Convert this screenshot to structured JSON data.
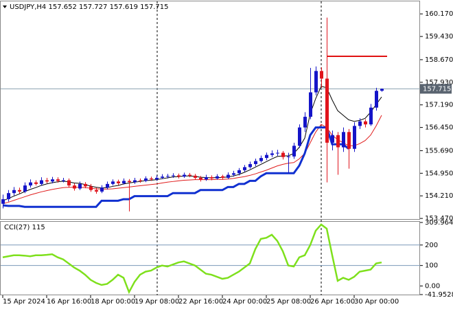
{
  "chart_data": {
    "type": "candlestick",
    "title": "USDJPY,H4",
    "categories": [
      "15 Apr 2024",
      null,
      null,
      null,
      null,
      null,
      null,
      null,
      "16 Apr 16:00",
      null,
      null,
      null,
      null,
      null,
      null,
      null,
      "18 Apr 00:00",
      null,
      null,
      null,
      null,
      null,
      null,
      null,
      "19 Apr 08:00",
      null,
      null,
      null,
      null,
      null,
      null,
      null,
      "22 Apr 16:00",
      null,
      null,
      null,
      null,
      null,
      null,
      null,
      "24 Apr 00:00",
      null,
      null,
      null,
      null,
      null,
      null,
      null,
      "25 Apr 08:00",
      null,
      null,
      null,
      null,
      null,
      null,
      null,
      "26 Apr 16:00",
      null,
      null,
      null,
      null,
      null,
      null,
      null,
      "30 Apr 00:00",
      null,
      null,
      null,
      null,
      null
    ],
    "open": [
      153.95,
      154.1,
      154.3,
      154.4,
      154.35,
      154.55,
      154.65,
      154.6,
      154.72,
      154.68,
      154.75,
      154.7,
      154.72,
      154.55,
      154.45,
      154.6,
      154.52,
      154.4,
      154.35,
      154.48,
      154.6,
      154.68,
      154.62,
      154.7,
      154.66,
      154.72,
      154.7,
      154.78,
      154.75,
      154.8,
      154.84,
      154.86,
      154.88,
      154.84,
      154.9,
      154.87,
      154.8,
      154.75,
      154.82,
      154.78,
      154.85,
      154.8,
      154.9,
      154.95,
      155.05,
      155.15,
      155.25,
      155.35,
      155.45,
      155.55,
      155.6,
      155.62,
      155.48,
      155.5,
      155.85,
      156.45,
      156.8,
      157.6,
      158.3,
      158.05,
      155.95,
      156.2,
      155.8,
      156.3,
      155.75,
      156.5,
      156.65,
      156.55,
      157.1,
      157.652
    ],
    "high": [
      154.25,
      154.4,
      154.5,
      154.48,
      154.65,
      154.75,
      154.72,
      154.82,
      154.8,
      154.83,
      154.82,
      154.8,
      154.78,
      154.62,
      154.68,
      154.66,
      154.6,
      154.48,
      154.56,
      154.68,
      154.75,
      154.74,
      154.78,
      154.76,
      154.8,
      154.78,
      154.85,
      154.84,
      154.88,
      154.92,
      154.93,
      154.95,
      154.94,
      154.97,
      154.96,
      154.93,
      154.86,
      154.9,
      154.88,
      154.92,
      154.9,
      154.98,
      155.03,
      155.12,
      155.22,
      155.33,
      155.43,
      155.53,
      155.63,
      155.7,
      155.72,
      155.68,
      155.62,
      155.95,
      156.55,
      156.95,
      158.4,
      158.45,
      158.42,
      160.05,
      156.35,
      156.3,
      156.45,
      156.4,
      156.62,
      156.75,
      156.72,
      157.22,
      157.75,
      157.727
    ],
    "low": [
      153.8,
      154.02,
      154.22,
      154.28,
      154.3,
      154.48,
      154.55,
      154.55,
      154.62,
      154.62,
      154.64,
      154.65,
      154.48,
      154.38,
      154.4,
      154.46,
      154.34,
      154.28,
      154.3,
      154.42,
      154.55,
      154.56,
      154.58,
      153.7,
      154.6,
      154.64,
      154.66,
      154.7,
      154.7,
      154.76,
      154.78,
      154.8,
      154.78,
      154.8,
      154.82,
      154.74,
      154.68,
      154.7,
      154.72,
      154.74,
      154.74,
      154.76,
      154.84,
      154.88,
      155.0,
      155.1,
      155.18,
      155.3,
      155.38,
      155.48,
      155.52,
      155.4,
      154.95,
      155.42,
      155.78,
      156.3,
      156.72,
      157.5,
      157.75,
      154.65,
      155.7,
      154.9,
      155.65,
      155.1,
      155.65,
      156.4,
      156.45,
      156.5,
      157.0,
      157.619
    ],
    "close": [
      154.1,
      154.3,
      154.4,
      154.35,
      154.55,
      154.65,
      154.6,
      154.72,
      154.68,
      154.75,
      154.7,
      154.72,
      154.55,
      154.45,
      154.6,
      154.52,
      154.4,
      154.35,
      154.48,
      154.6,
      154.68,
      154.62,
      154.7,
      154.66,
      154.72,
      154.7,
      154.78,
      154.75,
      154.8,
      154.84,
      154.86,
      154.88,
      154.84,
      154.9,
      154.87,
      154.8,
      154.75,
      154.82,
      154.78,
      154.85,
      154.8,
      154.9,
      154.95,
      155.05,
      155.15,
      155.25,
      155.35,
      155.45,
      155.55,
      155.6,
      155.62,
      155.48,
      155.5,
      155.85,
      156.45,
      156.8,
      157.6,
      158.3,
      158.05,
      155.95,
      156.2,
      155.8,
      156.3,
      155.75,
      156.5,
      156.65,
      156.55,
      157.1,
      157.65,
      157.715
    ],
    "up_color": "#1414c8",
    "down_color": "#e0141c",
    "lines": [
      {
        "color": "#000000",
        "width": 1,
        "values": [
          154.05,
          154.12,
          154.2,
          154.27,
          154.35,
          154.42,
          154.48,
          154.55,
          154.6,
          154.64,
          154.67,
          154.69,
          154.67,
          154.63,
          154.62,
          154.58,
          154.53,
          154.49,
          154.47,
          154.48,
          154.52,
          154.55,
          154.6,
          154.63,
          154.66,
          154.68,
          154.71,
          154.72,
          154.74,
          154.77,
          154.8,
          154.83,
          154.84,
          154.86,
          154.86,
          154.85,
          154.82,
          154.81,
          154.8,
          154.81,
          154.81,
          154.83,
          154.86,
          154.91,
          154.98,
          155.06,
          155.15,
          155.24,
          155.33,
          155.42,
          155.5,
          155.52,
          155.52,
          155.6,
          155.8,
          156.1,
          156.9,
          157.4,
          157.8,
          157.75,
          157.35,
          157.0,
          156.85,
          156.7,
          156.65,
          156.68,
          156.75,
          156.95,
          157.2,
          157.45
        ]
      },
      {
        "color": "#e01b1b",
        "width": 1,
        "values": [
          153.95,
          154.0,
          154.06,
          154.12,
          154.18,
          154.24,
          154.29,
          154.34,
          154.38,
          154.42,
          154.45,
          154.48,
          154.49,
          154.49,
          154.49,
          154.48,
          154.46,
          154.44,
          154.43,
          154.43,
          154.44,
          154.46,
          154.48,
          154.5,
          154.52,
          154.54,
          154.56,
          154.58,
          154.6,
          154.63,
          154.66,
          154.68,
          154.7,
          154.72,
          154.73,
          154.74,
          154.74,
          154.74,
          154.74,
          154.75,
          154.75,
          154.76,
          154.78,
          154.81,
          154.84,
          154.88,
          154.93,
          154.99,
          155.05,
          155.12,
          155.19,
          155.24,
          155.28,
          155.3,
          155.42,
          155.6,
          155.95,
          156.3,
          156.55,
          156.45,
          156.2,
          156.05,
          155.95,
          155.85,
          155.85,
          155.92,
          156.02,
          156.2,
          156.5,
          156.85
        ]
      },
      {
        "color": "#1030d0",
        "width": 3,
        "values": [
          153.9,
          153.88,
          153.88,
          153.88,
          153.85,
          153.85,
          153.85,
          153.85,
          153.85,
          153.85,
          153.85,
          153.85,
          153.85,
          153.85,
          153.85,
          153.85,
          153.85,
          153.85,
          154.05,
          154.05,
          154.05,
          154.05,
          154.1,
          154.1,
          154.2,
          154.2,
          154.2,
          154.2,
          154.2,
          154.2,
          154.2,
          154.3,
          154.3,
          154.3,
          154.3,
          154.3,
          154.4,
          154.4,
          154.4,
          154.4,
          154.4,
          154.5,
          154.5,
          154.6,
          154.6,
          154.7,
          154.7,
          154.85,
          154.95,
          154.95,
          154.95,
          154.95,
          154.95,
          154.95,
          155.2,
          155.6,
          156.2,
          156.45,
          156.45,
          156.45,
          155.9,
          155.9,
          155.9,
          155.75,
          null,
          null,
          null,
          null,
          null,
          null
        ]
      }
    ],
    "hline": {
      "value": 158.78,
      "color": "#e01010"
    },
    "ylim": [
      153.45,
      160.58
    ],
    "yticks": [
      {
        "value": 160.17,
        "label": "160.170"
      },
      {
        "value": 159.43,
        "label": "159.430"
      },
      {
        "value": 158.67,
        "label": "158.670"
      },
      {
        "value": 157.93,
        "label": "157.930"
      },
      {
        "value": 157.19,
        "label": "157.190"
      },
      {
        "value": 156.45,
        "label": "156.450"
      },
      {
        "value": 155.69,
        "label": "155.690"
      },
      {
        "value": 154.95,
        "label": "154.950"
      },
      {
        "value": 154.21,
        "label": "154.210"
      },
      {
        "value": 153.47,
        "label": "153.470"
      }
    ],
    "cci": {
      "title": "CCI(27)",
      "color": "#7ee01c",
      "values": [
        140,
        145,
        150,
        150,
        148,
        145,
        150,
        150,
        152,
        155,
        140,
        130,
        110,
        90,
        75,
        55,
        30,
        15,
        5,
        10,
        30,
        55,
        40,
        -30,
        20,
        55,
        70,
        75,
        90,
        100,
        95,
        105,
        115,
        120,
        110,
        100,
        80,
        60,
        55,
        45,
        35,
        40,
        55,
        70,
        90,
        110,
        180,
        230,
        235,
        250,
        220,
        170,
        100,
        95,
        140,
        150,
        200,
        270,
        300,
        280,
        150,
        25,
        40,
        30,
        45,
        70,
        75,
        80,
        110,
        115
      ],
      "ylim": [
        -41.9528,
        309.9643
      ],
      "yticks": [
        309.9643,
        200,
        100,
        {
          "value": 0,
          "label": "0.00"
        },
        -41.9528
      ],
      "levels": [
        200,
        100
      ],
      "level_color": "#7a98b8"
    }
  }
}
